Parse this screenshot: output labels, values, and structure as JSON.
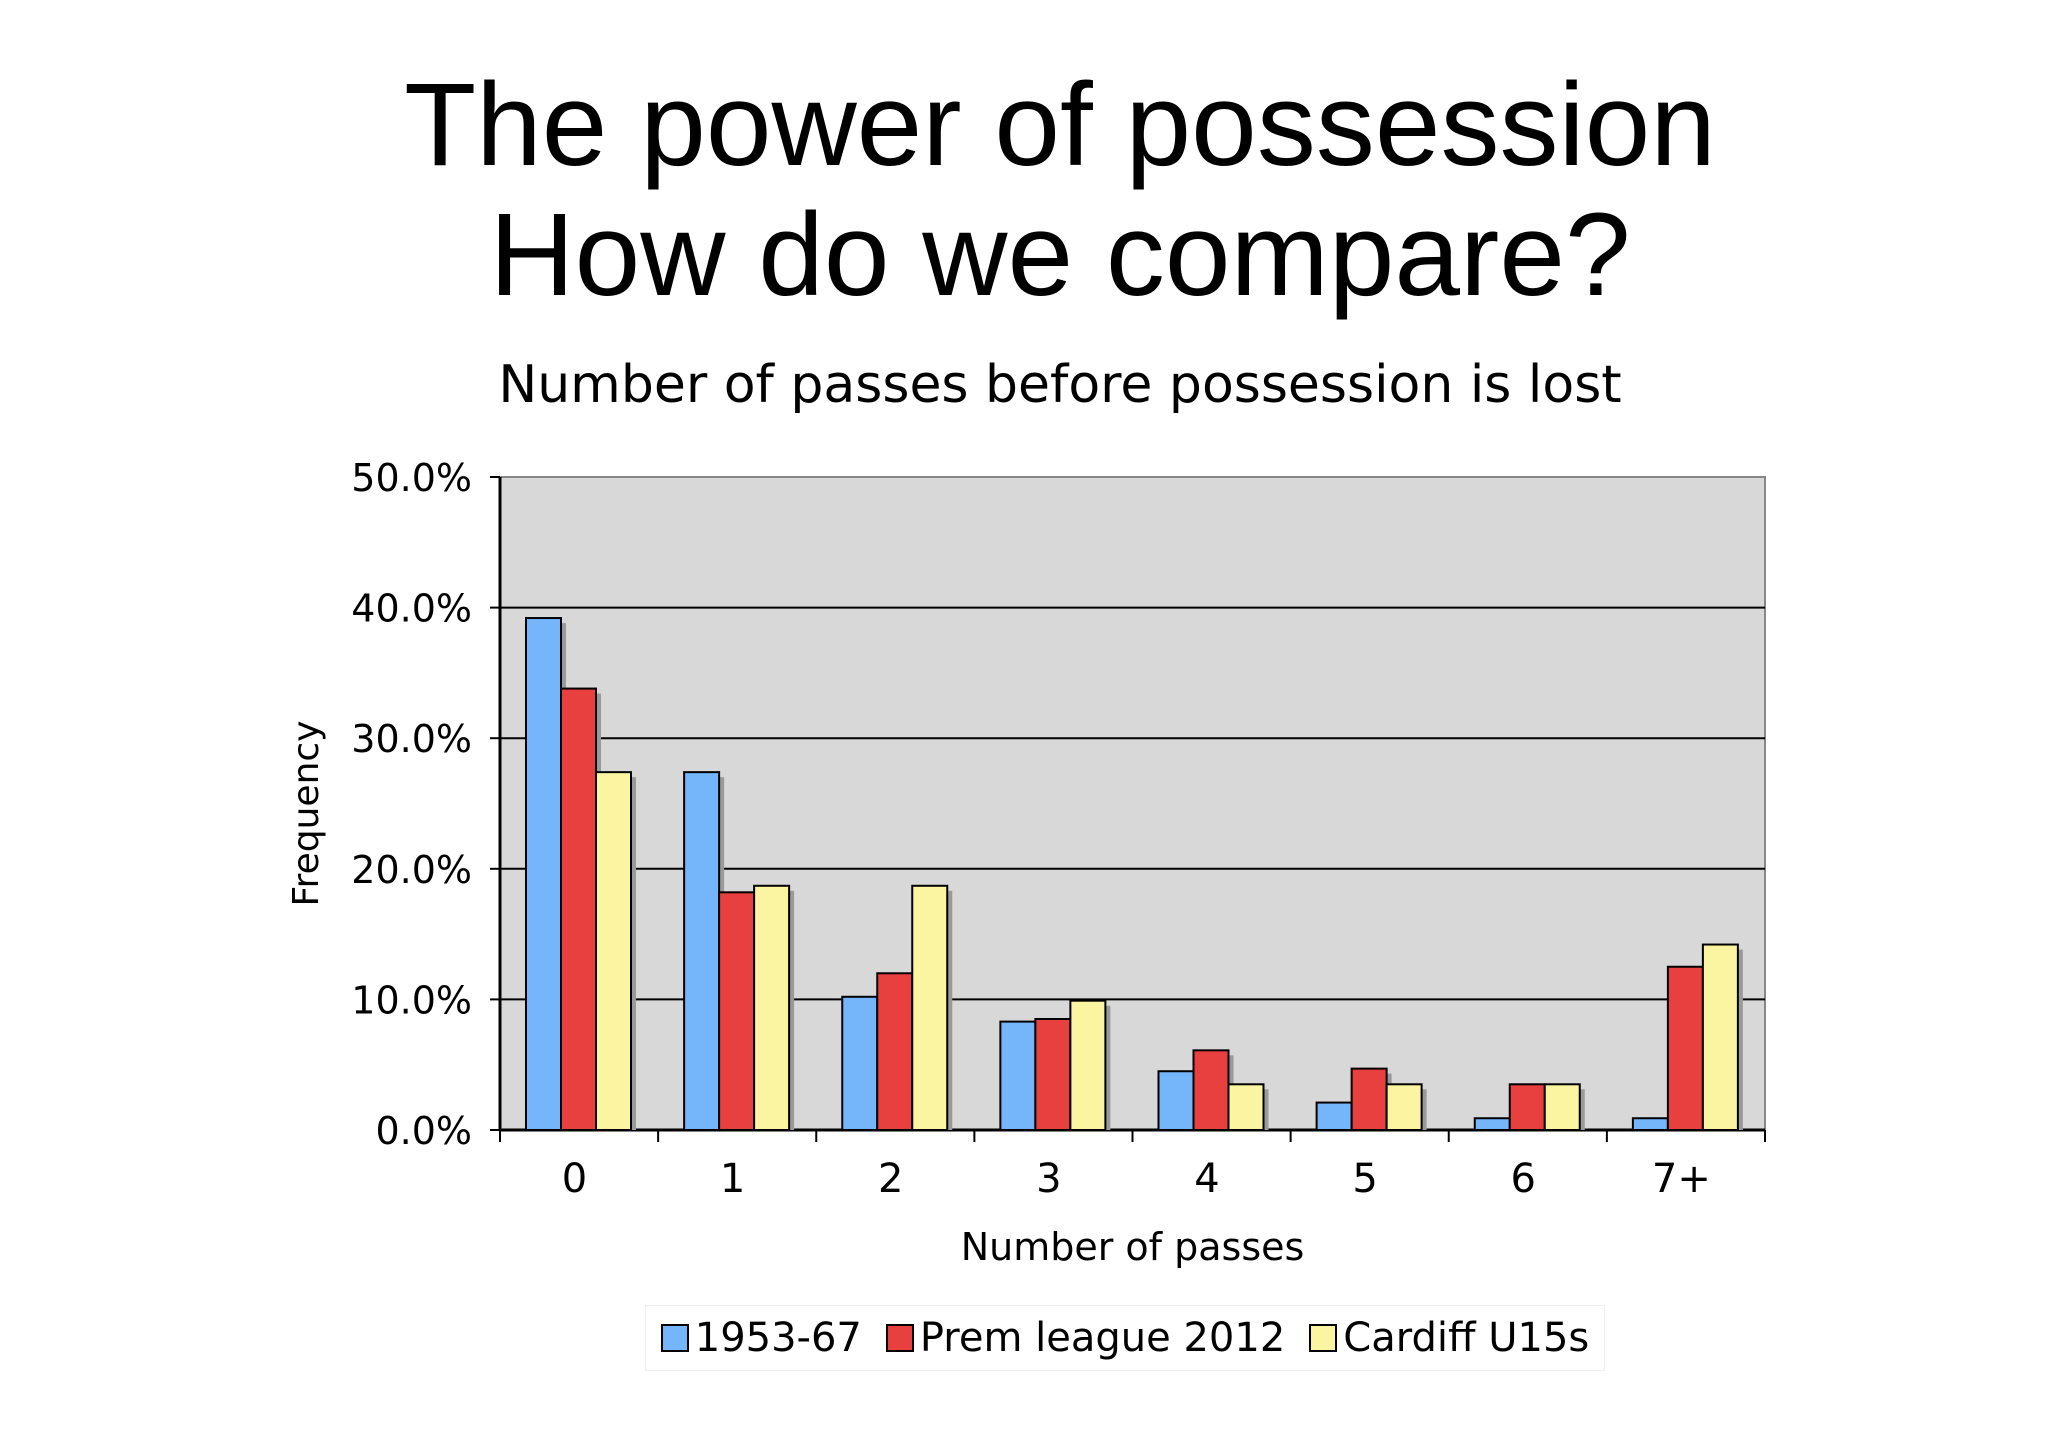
{
  "slide": {
    "title_line1": "The power of possession",
    "title_line2": "How do we compare?"
  },
  "chart_data": {
    "type": "bar",
    "title": "Number of passes before possession is lost",
    "xlabel": "Number of passes",
    "ylabel": "Frequency",
    "categories": [
      "0",
      "1",
      "2",
      "3",
      "4",
      "5",
      "6",
      "7+"
    ],
    "ylim": [
      0,
      50
    ],
    "yticks": [
      "0.0%",
      "10.0%",
      "20.0%",
      "30.0%",
      "40.0%",
      "50.0%"
    ],
    "grid": true,
    "legend_position": "bottom",
    "plot_background": "#d8d8d8",
    "series": [
      {
        "name": "1953-67",
        "color": "#75b6fb",
        "values": [
          39.2,
          27.4,
          10.2,
          8.3,
          4.5,
          2.1,
          0.9,
          0.9
        ]
      },
      {
        "name": "Prem league 2012",
        "color": "#e8403f",
        "values": [
          33.8,
          18.2,
          12.0,
          8.5,
          6.1,
          4.7,
          3.5,
          12.5
        ]
      },
      {
        "name": "Cardiff U15s",
        "color": "#fbf4a0",
        "values": [
          27.4,
          18.7,
          18.7,
          9.9,
          3.5,
          3.5,
          3.5,
          14.2
        ]
      }
    ]
  }
}
